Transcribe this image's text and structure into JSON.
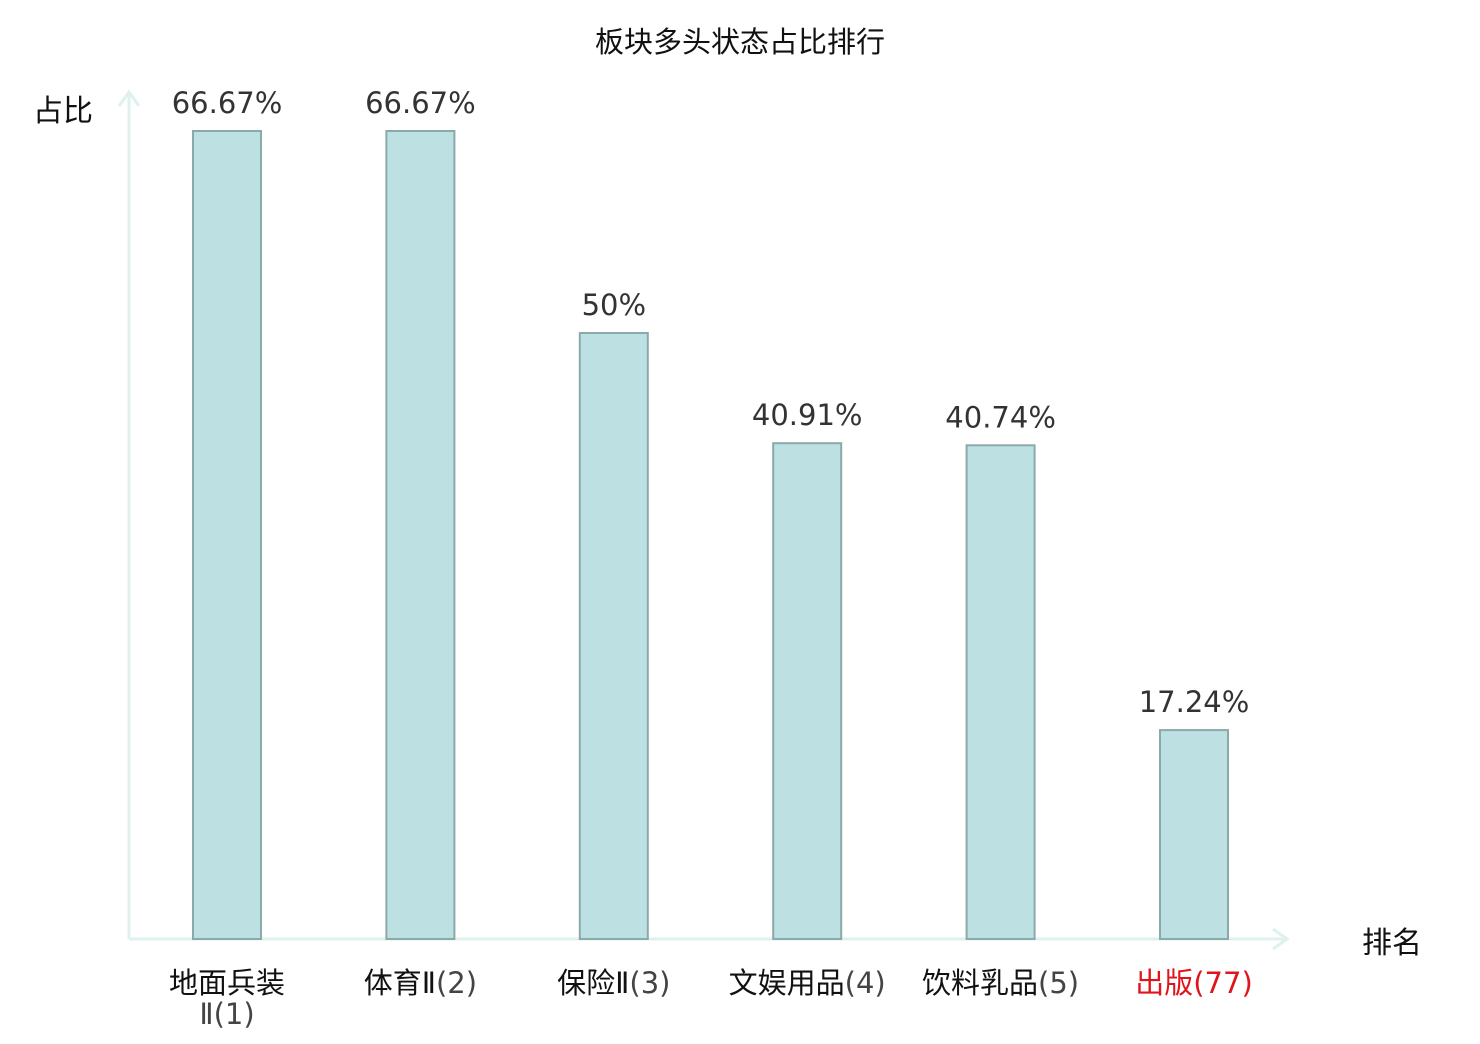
{
  "chart_data": {
    "type": "bar",
    "title": "板块多头状态占比排行",
    "ylabel": "占比",
    "xlabel": "排名",
    "categories": [
      {
        "name": "地面兵装",
        "name2": "Ⅱ",
        "rank": "(1)",
        "highlight": false
      },
      {
        "name": "体育Ⅱ",
        "name2": "",
        "rank": "(2)",
        "highlight": false
      },
      {
        "name": "保险Ⅱ",
        "name2": "",
        "rank": "(3)",
        "highlight": false
      },
      {
        "name": "文娱用品",
        "name2": "",
        "rank": "(4)",
        "highlight": false
      },
      {
        "name": "饮料乳品",
        "name2": "",
        "rank": "(5)",
        "highlight": false
      },
      {
        "name": "出版",
        "name2": "",
        "rank": "(77)",
        "highlight": true
      }
    ],
    "values": [
      66.67,
      66.67,
      50,
      40.91,
      40.74,
      17.24
    ],
    "value_labels": [
      "66.67%",
      "66.67%",
      "50%",
      "40.91%",
      "40.74%",
      "17.24%"
    ],
    "ylim": [
      0,
      66.67
    ],
    "grid": false,
    "legend": "none"
  },
  "colors": {
    "bar_fill": "#bde0e3",
    "bar_stroke": "#8aa9a9",
    "axis": "#dff1ef",
    "text": "#333333",
    "label_dark": "#111111",
    "label_gray": "#444444",
    "highlight": "#e0141a"
  }
}
